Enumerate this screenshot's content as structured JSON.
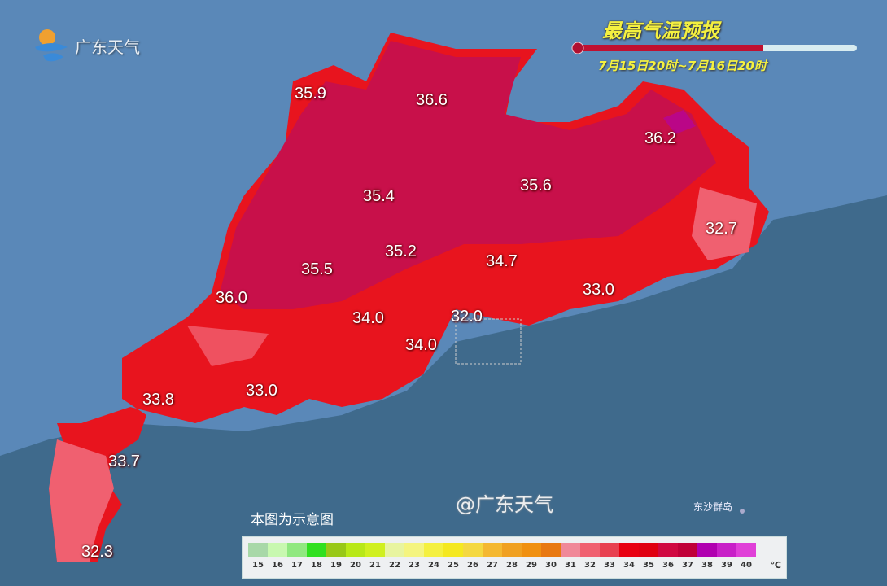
{
  "title": "最高气温预报",
  "subtitle": "7月15日20时~7月16日20时",
  "logo_text": "广东天气",
  "note": "本图为示意图",
  "island_label": "东沙群岛",
  "watermark": "@广东天气",
  "colors": {
    "ocean": "#3f6a8c",
    "land_outside": "#5a88b8",
    "hot_red": "#e8141e",
    "deep_red": "#c8104a",
    "pink": "#f06070"
  },
  "temperatures": [
    {
      "value": "35.9"
    },
    {
      "value": "36.6"
    },
    {
      "value": "36.2"
    },
    {
      "value": "35.4"
    },
    {
      "value": "35.6"
    },
    {
      "value": "35.2"
    },
    {
      "value": "35.5"
    },
    {
      "value": "36.0"
    },
    {
      "value": "34.7"
    },
    {
      "value": "32.7"
    },
    {
      "value": "33.0"
    },
    {
      "value": "34.0"
    },
    {
      "value": "32.0"
    },
    {
      "value": "34.0"
    },
    {
      "value": "33.8"
    },
    {
      "value": "33.0"
    },
    {
      "value": "33.7"
    },
    {
      "value": "32.3"
    }
  ],
  "legend": {
    "unit": "℃",
    "ticks": [
      "15",
      "16",
      "17",
      "18",
      "19",
      "20",
      "21",
      "22",
      "23",
      "24",
      "25",
      "26",
      "27",
      "28",
      "29",
      "30",
      "31",
      "32",
      "33",
      "34",
      "35",
      "36",
      "37",
      "38",
      "39",
      "40"
    ],
    "colors": [
      "#a8d8a8",
      "#c8f8b0",
      "#90e880",
      "#30e020",
      "#98c818",
      "#b8e818",
      "#d0f020",
      "#e8f4a0",
      "#f4f480",
      "#f4f040",
      "#f4e820",
      "#f4d840",
      "#f4b830",
      "#f0a020",
      "#f09010",
      "#e87810",
      "#f08898",
      "#f06070",
      "#e84050",
      "#e80010",
      "#e00010",
      "#d00840",
      "#c00038",
      "#b000b0",
      "#c820c8",
      "#e040d8"
    ]
  }
}
